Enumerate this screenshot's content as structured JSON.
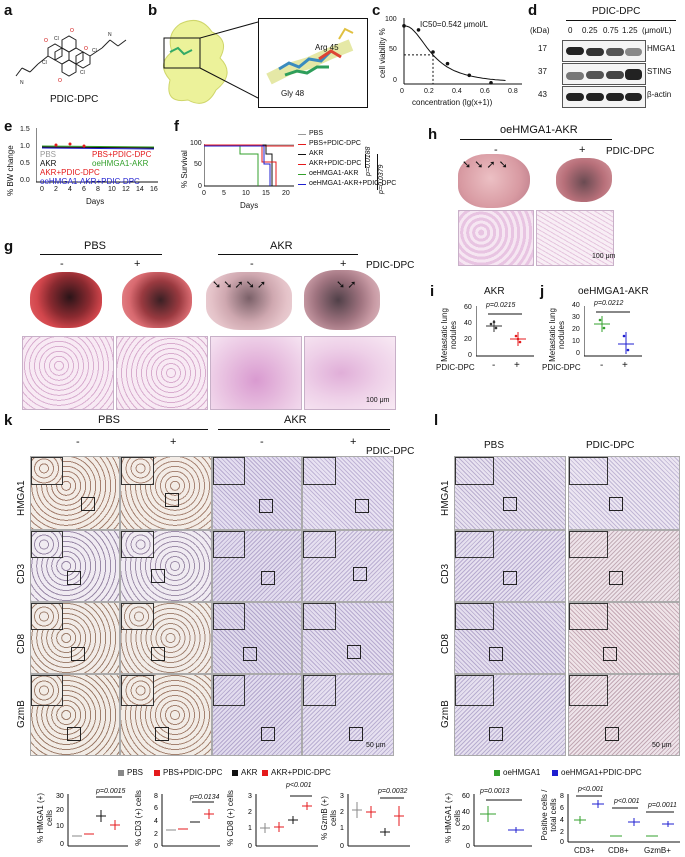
{
  "panels": [
    "a",
    "b",
    "c",
    "d",
    "e",
    "f",
    "g",
    "h",
    "i",
    "j",
    "k",
    "l"
  ],
  "a": {
    "label": "PDIC-DPC"
  },
  "b": {
    "residues": [
      "Arg 45",
      "Gly 48"
    ]
  },
  "c": {
    "ylabel": "cell viability %",
    "xlabel": "concentration (lg(x+1))",
    "ic50": "IC50=0.542 μmol/L",
    "yticks": [
      "100",
      "50",
      "0"
    ],
    "xticks": [
      "0",
      "0.2",
      "0.4",
      "0.6",
      "0.8"
    ]
  },
  "d": {
    "title": "PDIC-DPC",
    "kda_label": "(kDa)",
    "unit": "(μmol/L)",
    "concentrations": [
      "0",
      "0.25",
      "0.75",
      "1.25"
    ],
    "rows": [
      {
        "kda": "17",
        "name": "HMGA1"
      },
      {
        "kda": "37",
        "name": "STING"
      },
      {
        "kda": "43",
        "name": "β-actin"
      }
    ]
  },
  "e": {
    "ylabel": "% BW change",
    "xlabel": "Days",
    "yticks": [
      "1.5",
      "1.0",
      "0.5",
      "0.0"
    ],
    "xticks": [
      "0",
      "2",
      "4",
      "6",
      "8",
      "10",
      "12",
      "14",
      "16"
    ],
    "legend": [
      {
        "name": "PBS",
        "color": "#999999"
      },
      {
        "name": "PBS+PDIC-DPC",
        "color": "#e41a1c"
      },
      {
        "name": "AKR",
        "color": "#111111"
      },
      {
        "name": "oeHMGA1-AKR",
        "color": "#33a02c"
      },
      {
        "name": "AKR+PDIC-DPC",
        "color": "#e41a1c"
      },
      {
        "name": "oeHMGA1-AKR+PDIC-DPC",
        "color": "#1f1fd0"
      }
    ]
  },
  "f": {
    "ylabel": "% Survival",
    "xlabel": "Days",
    "yticks": [
      "100",
      "50",
      "0"
    ],
    "xticks": [
      "0",
      "5",
      "10",
      "15",
      "20"
    ],
    "legend": [
      {
        "name": "PBS",
        "color": "#999999"
      },
      {
        "name": "PBS+PDIC-DPC",
        "color": "#e41a1c"
      },
      {
        "name": "AKR",
        "color": "#111111"
      },
      {
        "name": "AKR+PDIC-DPC",
        "color": "#e41a1c"
      },
      {
        "name": "oeHMGA1-AKR",
        "color": "#33a02c"
      },
      {
        "name": "oeHMGA1-AKR+PDIC-DPC",
        "color": "#1f1fd0"
      }
    ],
    "pvals": [
      "p=0.0188",
      "p=0.0379"
    ]
  },
  "g": {
    "groups": [
      "PBS",
      "AKR"
    ],
    "signs": [
      "-",
      "+",
      "-",
      "+"
    ],
    "drug": "PDIC-DPC",
    "scale": "100 μm"
  },
  "h": {
    "title": "oeHMGA1-AKR",
    "signs": [
      "-",
      "+"
    ],
    "drug": "PDIC-DPC",
    "scale": "100 μm"
  },
  "i": {
    "title": "AKR",
    "ylabel": "Metastatic lung nodules",
    "yticks": [
      "60",
      "40",
      "20",
      "0"
    ],
    "pval": "p=0.0215",
    "xlabel": "PDIC-DPC",
    "signs": [
      "-",
      "+"
    ]
  },
  "j": {
    "title": "oeHMGA1-AKR",
    "ylabel": "Metastatic lung nodules",
    "yticks": [
      "40",
      "30",
      "20",
      "10",
      "0"
    ],
    "pval": "p=0.0212",
    "xlabel": "PDIC-DPC",
    "signs": [
      "-",
      "+"
    ]
  },
  "k": {
    "groups": [
      "PBS",
      "AKR"
    ],
    "signs": [
      "-",
      "+",
      "-",
      "+"
    ],
    "drug": "PDIC-DPC",
    "rows": [
      "HMGA1",
      "CD3",
      "CD8",
      "GzmB"
    ],
    "scale": "50 μm",
    "legend": [
      {
        "name": "PBS",
        "color": "#888888"
      },
      {
        "name": "PBS+PDIC-DPC",
        "color": "#e41a1c"
      },
      {
        "name": "AKR",
        "color": "#111111"
      },
      {
        "name": "AKR+PDIC-DPC",
        "color": "#e41a1c"
      }
    ],
    "plots": [
      {
        "ylabel": "% HMGA1 (+) cells",
        "yticks": [
          "30",
          "20",
          "10",
          "0"
        ],
        "pval": "p=0.0015"
      },
      {
        "ylabel": "% CD3 (+) cells",
        "yticks": [
          "8",
          "6",
          "4",
          "2",
          "0"
        ],
        "pval": "p=0.0134"
      },
      {
        "ylabel": "% CD8 (+) cells",
        "yticks": [
          "3",
          "2",
          "1",
          "0"
        ],
        "pval": "p<0.001"
      },
      {
        "ylabel": "% GzmB (+) cells",
        "yticks": [
          "3",
          "2",
          "1",
          "0"
        ],
        "pval": "p=0.0032"
      }
    ]
  },
  "l": {
    "groups": [
      "PBS",
      "PDIC-DPC"
    ],
    "rows": [
      "HMGA1",
      "CD3",
      "CD8",
      "GzmB"
    ],
    "scale": "50 μm",
    "legend": [
      {
        "name": "oeHMGA1",
        "color": "#33a02c"
      },
      {
        "name": "oeHMGA1+PDIC-DPC",
        "color": "#1f1fd0"
      }
    ],
    "plot1": {
      "ylabel": "% HMGA1 (+) cells",
      "yticks": [
        "60",
        "40",
        "20",
        "0"
      ],
      "pval": "p=0.0013"
    },
    "plot2": {
      "ylabel": "Positive cells / total cells",
      "yticks": [
        "8",
        "6",
        "4",
        "2",
        "0"
      ],
      "pvals": [
        "p<0.001",
        "p<0.001",
        "p=0.0011"
      ],
      "categories": [
        "CD3+",
        "CD8+",
        "GzmB+"
      ]
    }
  },
  "chart_data": [
    {
      "type": "scatter",
      "panel": "c",
      "ylabel": "cell viability %",
      "xlabel": "concentration (lg(x+1))",
      "x": [
        0,
        0.1,
        0.2,
        0.3,
        0.45,
        0.6
      ],
      "y": [
        100,
        93,
        55,
        35,
        15,
        2
      ],
      "xlim": [
        0,
        0.8
      ],
      "ylim": [
        0,
        110
      ]
    },
    {
      "type": "bar",
      "panel": "i",
      "categories": [
        "-",
        "+"
      ],
      "values": [
        38,
        20
      ],
      "ylim": [
        0,
        60
      ]
    },
    {
      "type": "bar",
      "panel": "j",
      "categories": [
        "-",
        "+"
      ],
      "values": [
        27,
        11
      ],
      "ylim": [
        0,
        40
      ]
    }
  ]
}
